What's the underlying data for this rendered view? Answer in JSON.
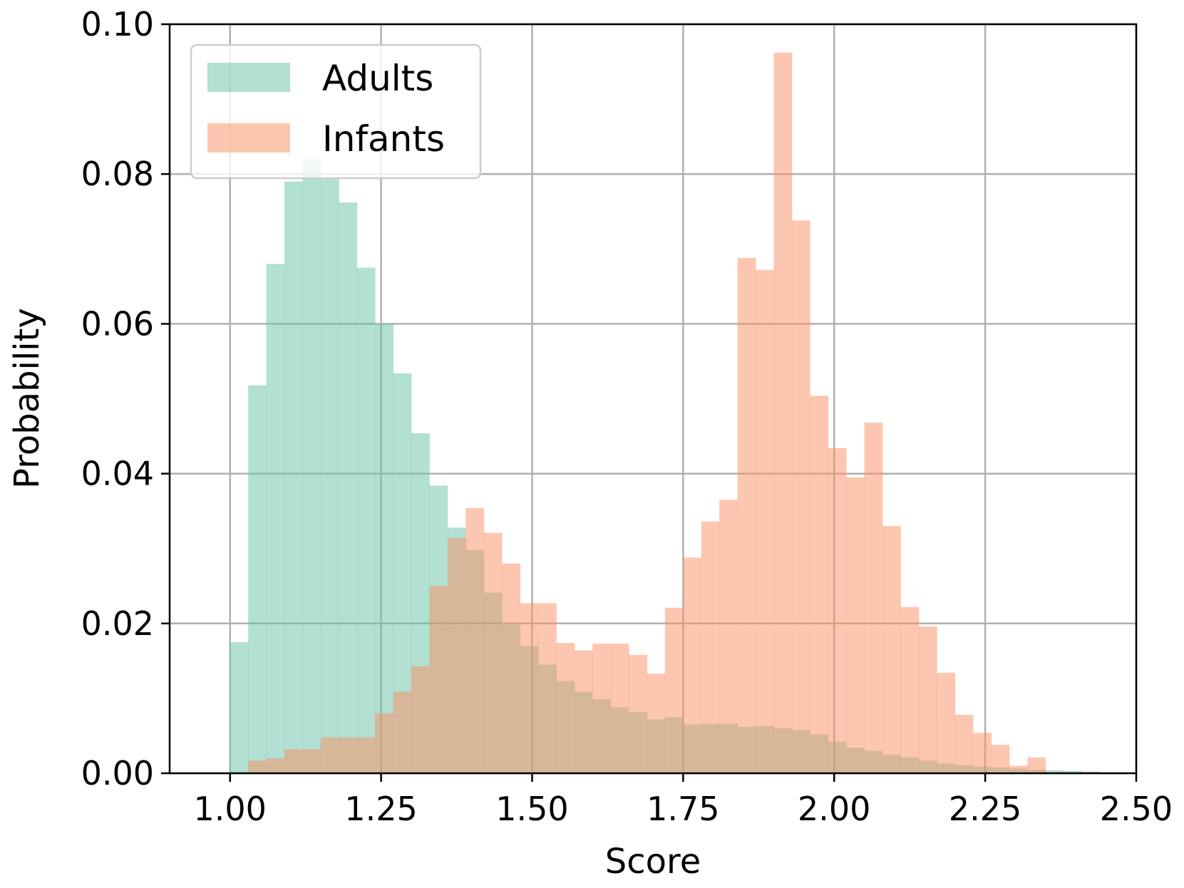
{
  "chart_data": {
    "type": "histogram",
    "title": "",
    "xlabel": "Score",
    "ylabel": "Probability",
    "xlim": [
      0.9,
      2.5
    ],
    "ylim": [
      0,
      0.1
    ],
    "xticks": [
      "1.00",
      "1.25",
      "1.50",
      "1.75",
      "2.00",
      "2.25",
      "2.50"
    ],
    "xtick_values": [
      1.0,
      1.25,
      1.5,
      1.75,
      2.0,
      2.25,
      2.5
    ],
    "yticks": [
      "0.00",
      "0.02",
      "0.04",
      "0.06",
      "0.08",
      "0.10"
    ],
    "ytick_values": [
      0,
      0.02,
      0.04,
      0.06,
      0.08,
      0.1
    ],
    "grid": true,
    "legend_position": "upper-left",
    "bin_start": 1.0,
    "bin_width": 0.03,
    "series": [
      {
        "name": "Adults",
        "color": "#66c2a5",
        "opacity": 0.5,
        "values": [
          0.0175,
          0.0518,
          0.068,
          0.079,
          0.082,
          0.0795,
          0.0762,
          0.0675,
          0.06,
          0.0534,
          0.0454,
          0.0384,
          0.0328,
          0.0298,
          0.0241,
          0.0199,
          0.017,
          0.0145,
          0.0123,
          0.0109,
          0.0099,
          0.0088,
          0.0082,
          0.0072,
          0.0075,
          0.0065,
          0.0066,
          0.0066,
          0.0062,
          0.0063,
          0.006,
          0.0058,
          0.0052,
          0.0042,
          0.0034,
          0.003,
          0.0025,
          0.0021,
          0.0017,
          0.0013,
          0.0011,
          0.0009,
          0.0008,
          0.0006,
          0.0005,
          0.0004,
          0.0003,
          0.0002,
          0.0001,
          0.0001
        ]
      },
      {
        "name": "Infants",
        "color": "#fc8d62",
        "opacity": 0.5,
        "values": [
          0.0,
          0.0017,
          0.002,
          0.0032,
          0.0032,
          0.0048,
          0.0048,
          0.0048,
          0.008,
          0.0109,
          0.0143,
          0.025,
          0.0314,
          0.0354,
          0.0321,
          0.028,
          0.0227,
          0.0227,
          0.0174,
          0.0164,
          0.0173,
          0.0173,
          0.0158,
          0.0133,
          0.0221,
          0.0288,
          0.0336,
          0.0365,
          0.0688,
          0.0672,
          0.0962,
          0.0738,
          0.0504,
          0.0434,
          0.0395,
          0.0468,
          0.033,
          0.0222,
          0.0196,
          0.0134,
          0.0078,
          0.0054,
          0.0038,
          0.001,
          0.0021,
          0.0001,
          0.0001,
          0.0002,
          0.0,
          0.0
        ]
      }
    ]
  }
}
